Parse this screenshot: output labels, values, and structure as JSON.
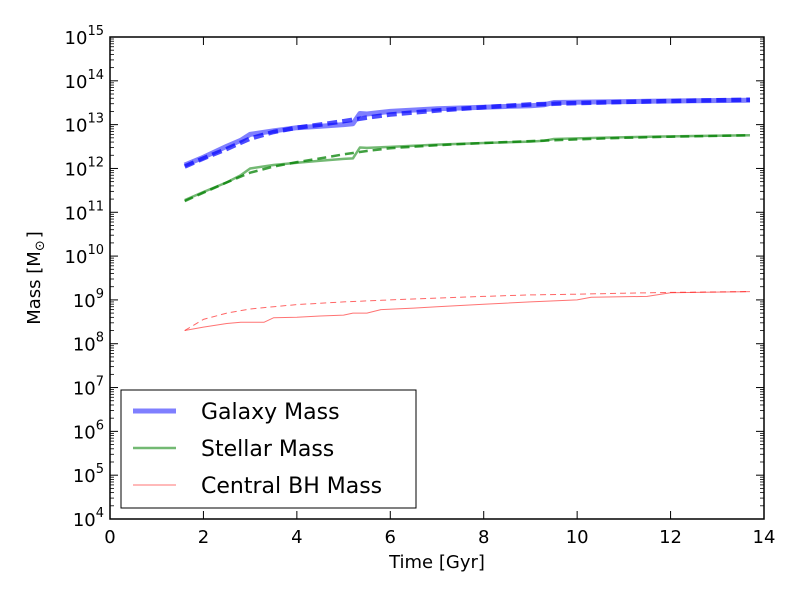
{
  "chart_data": {
    "type": "line",
    "title": "",
    "xlabel": "Time [Gyr]",
    "ylabel_main": "Mass [M",
    "ylabel_sub": "⊙",
    "ylabel_end": "]",
    "xlim": [
      0,
      14
    ],
    "ylim": [
      10000.0,
      1000000000000000.0
    ],
    "yscale": "log",
    "grid": false,
    "legend_position": "lower-left",
    "x_ticks": [
      0,
      2,
      4,
      6,
      8,
      10,
      12,
      14
    ],
    "x_tick_labels": [
      "0",
      "2",
      "4",
      "6",
      "8",
      "10",
      "12",
      "14"
    ],
    "y_tick_exponents": [
      4,
      5,
      6,
      7,
      8,
      9,
      10,
      11,
      12,
      13,
      14,
      15
    ],
    "y_tick_base": "10",
    "y_tick_exponent_labels": [
      "4",
      "5",
      "6",
      "7",
      "8",
      "9",
      "10",
      "11",
      "12",
      "13",
      "14",
      "15"
    ],
    "series": [
      {
        "name": "Galaxy Mass",
        "color": "#0000ff",
        "opacity": 0.5,
        "style": "thick",
        "x": [
          1.6,
          2.0,
          2.5,
          2.8,
          3.0,
          3.5,
          4.0,
          4.5,
          5.0,
          5.2,
          5.35,
          5.5,
          6.0,
          7.0,
          8.0,
          9.0,
          9.3,
          9.5,
          10.5,
          11.5,
          12.5,
          13.7
        ],
        "y": [
          1200000000000.0,
          1800000000000.0,
          3200000000000.0,
          4400000000000.0,
          6000000000000.0,
          7200000000000.0,
          8500000000000.0,
          9200000000000.0,
          10000000000000.0,
          10500000000000.0,
          18000000000000.0,
          17500000000000.0,
          20000000000000.0,
          23000000000000.0,
          25000000000000.0,
          27000000000000.0,
          28500000000000.0,
          32000000000000.0,
          33000000000000.0,
          34000000000000.0,
          35000000000000.0,
          36000000000000.0
        ]
      },
      {
        "name": "Galaxy Mass (dashed)",
        "color": "#0000ff",
        "opacity": 0.7,
        "style": "thick-dashed",
        "x": [
          1.6,
          2.0,
          2.5,
          3.0,
          3.5,
          4.0,
          4.5,
          5.0,
          5.5,
          6.0,
          7.0,
          8.0,
          9.0,
          10.0,
          11.0,
          12.0,
          13.7
        ],
        "y": [
          1100000000000.0,
          1700000000000.0,
          2800000000000.0,
          4800000000000.0,
          6800000000000.0,
          8500000000000.0,
          10000000000000.0,
          12000000000000.0,
          14500000000000.0,
          17000000000000.0,
          21000000000000.0,
          25000000000000.0,
          29000000000000.0,
          31000000000000.0,
          33000000000000.0,
          34500000000000.0,
          37000000000000.0
        ]
      },
      {
        "name": "Stellar Mass",
        "color": "#008000",
        "opacity": 0.55,
        "style": "medium",
        "x": [
          1.6,
          2.0,
          2.5,
          2.8,
          3.0,
          3.5,
          4.0,
          4.5,
          5.0,
          5.2,
          5.35,
          5.5,
          6.0,
          7.0,
          8.0,
          9.0,
          9.3,
          9.5,
          10.5,
          11.5,
          12.5,
          13.7
        ],
        "y": [
          190000000000.0,
          290000000000.0,
          480000000000.0,
          700000000000.0,
          1000000000000.0,
          1200000000000.0,
          1350000000000.0,
          1500000000000.0,
          1650000000000.0,
          1700000000000.0,
          3000000000000.0,
          2950000000000.0,
          3100000000000.0,
          3500000000000.0,
          3800000000000.0,
          4100000000000.0,
          4300000000000.0,
          4700000000000.0,
          5000000000000.0,
          5300000000000.0,
          5500000000000.0,
          5700000000000.0
        ]
      },
      {
        "name": "Stellar Mass (dashed)",
        "color": "#008000",
        "opacity": 0.75,
        "style": "medium-dashed",
        "x": [
          1.6,
          2.0,
          2.5,
          3.0,
          3.5,
          4.0,
          4.5,
          5.0,
          5.5,
          6.0,
          7.0,
          8.0,
          9.0,
          10.0,
          11.0,
          12.0,
          13.7
        ],
        "y": [
          180000000000.0,
          280000000000.0,
          480000000000.0,
          800000000000.0,
          1100000000000.0,
          1400000000000.0,
          1700000000000.0,
          2100000000000.0,
          2500000000000.0,
          2900000000000.0,
          3400000000000.0,
          3800000000000.0,
          4200000000000.0,
          4600000000000.0,
          5000000000000.0,
          5300000000000.0,
          5700000000000.0
        ]
      },
      {
        "name": "Central BH Mass",
        "color": "#ff0000",
        "opacity": 0.55,
        "style": "thin",
        "x": [
          1.6,
          2.0,
          2.5,
          2.8,
          3.3,
          3.5,
          4.0,
          4.5,
          5.0,
          5.2,
          5.5,
          5.8,
          6.5,
          7.0,
          8.0,
          9.0,
          10.0,
          10.3,
          11.5,
          12.0,
          13.7
        ],
        "y": [
          200000000.0,
          240000000.0,
          290000000.0,
          310000000.0,
          310000000.0,
          390000000.0,
          400000000.0,
          430000000.0,
          450000000.0,
          500000000.0,
          500000000.0,
          600000000.0,
          650000000.0,
          700000000.0,
          800000000.0,
          900000000.0,
          1000000000.0,
          1150000000.0,
          1200000000.0,
          1450000000.0,
          1550000000.0
        ]
      },
      {
        "name": "Central BH Mass (dashed)",
        "color": "#ff0000",
        "opacity": 0.6,
        "style": "thin-dashed",
        "x": [
          1.6,
          2.0,
          2.5,
          3.0,
          3.5,
          4.0,
          5.0,
          6.0,
          7.0,
          8.0,
          9.0,
          10.0,
          11.0,
          12.0,
          13.7
        ],
        "y": [
          200000000.0,
          360000000.0,
          500000000.0,
          620000000.0,
          700000000.0,
          780000000.0,
          900000000.0,
          1000000000.0,
          1100000000.0,
          1200000000.0,
          1300000000.0,
          1350000000.0,
          1420000000.0,
          1480000000.0,
          1550000000.0
        ]
      }
    ],
    "legend": [
      {
        "label": "Galaxy Mass",
        "color": "#0000ff",
        "opacity": 0.5,
        "style": "thick"
      },
      {
        "label": "Stellar Mass",
        "color": "#008000",
        "opacity": 0.55,
        "style": "medium"
      },
      {
        "label": "Central BH Mass",
        "color": "#ff0000",
        "opacity": 0.55,
        "style": "thin"
      }
    ]
  }
}
